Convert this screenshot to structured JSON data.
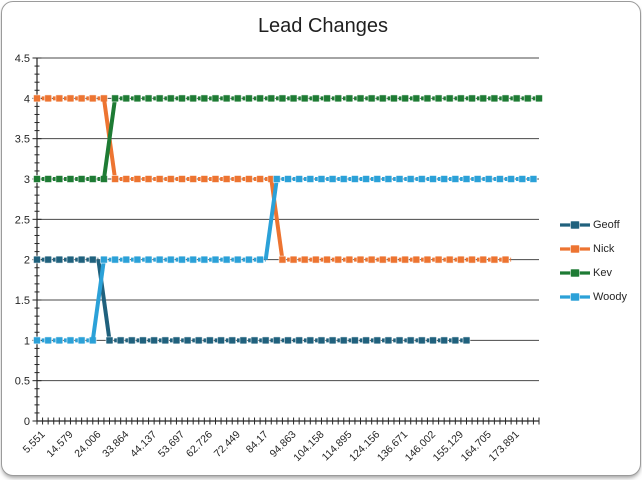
{
  "title": "Lead Changes",
  "frame": {
    "background": "#ffffff",
    "border_color": "#9b9b9b",
    "grid_color": "#4a4a4a",
    "axis_color": "#262626",
    "text_color": "#262626"
  },
  "chart_data": {
    "type": "line",
    "title": "Lead Changes",
    "line_style": "thick-dashed-with-square-markers",
    "grid": "horizontal-major",
    "legend_position": "right",
    "x_axis": {
      "tick_count": 91,
      "first_label_index": 1,
      "label_every": 5,
      "tick_labels": [
        "5.551",
        "14.579",
        "24.006",
        "33.864",
        "44.137",
        "53.697",
        "62.726",
        "72.449",
        "84.17",
        "94.863",
        "104.158",
        "114.895",
        "124.156",
        "136.671",
        "146.002",
        "155.129",
        "164.705",
        "173.891"
      ]
    },
    "y_axis": {
      "min": 0,
      "max": 4.5,
      "major_interval": 0.5,
      "minor_interval": 0.1,
      "tick_labels": [
        "0",
        "0.5",
        "1",
        "1.5",
        "2",
        "2.5",
        "3",
        "3.5",
        "4",
        "4.5"
      ]
    },
    "series": [
      {
        "name": "Geoff",
        "color": "#20617D",
        "segments": [
          {
            "from_index": 0,
            "to_index": 11,
            "position": 2
          },
          {
            "from_index": 13,
            "to_index": 77,
            "position": 1
          }
        ]
      },
      {
        "name": "Nick",
        "color": "#ED7431",
        "segments": [
          {
            "from_index": 0,
            "to_index": 12,
            "position": 4
          },
          {
            "from_index": 14,
            "to_index": 42,
            "position": 3
          },
          {
            "from_index": 44,
            "to_index": 85,
            "position": 2
          }
        ]
      },
      {
        "name": "Kev",
        "color": "#1E7B34",
        "segments": [
          {
            "from_index": 0,
            "to_index": 12,
            "position": 3
          },
          {
            "from_index": 14,
            "to_index": 90,
            "position": 4
          }
        ]
      },
      {
        "name": "Woody",
        "color": "#2BA1D8",
        "segments": [
          {
            "from_index": 0,
            "to_index": 10,
            "position": 1
          },
          {
            "from_index": 12,
            "to_index": 41,
            "position": 2
          },
          {
            "from_index": 43,
            "to_index": 89,
            "position": 3
          }
        ]
      }
    ]
  }
}
